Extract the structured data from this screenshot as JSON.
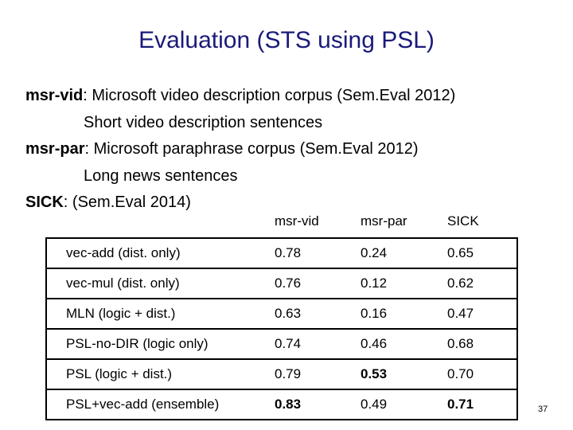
{
  "title": "Evaluation (STS using PSL)",
  "lines": [
    {
      "key": "msr-vid",
      "text": ": Microsoft video description corpus (Sem.Eval 2012)"
    },
    {
      "text": "Short video description sentences"
    },
    {
      "key": "msr-par",
      "text": ": Microsoft paraphrase corpus  (Sem.Eval 2012)"
    },
    {
      "text": "Long news sentences"
    },
    {
      "key": "SICK",
      "text": ": (Sem.Eval 2014)"
    }
  ],
  "table": {
    "headers": [
      "",
      "msr-vid",
      "msr-par",
      "SICK"
    ],
    "rows": [
      [
        "vec-add (dist. only)",
        "0.78",
        "0.24",
        "0.65"
      ],
      [
        "vec-mul (dist. only)",
        "0.76",
        "0.12",
        "0.62"
      ],
      [
        "MLN (logic + dist.)",
        "0.63",
        "0.16",
        "0.47"
      ],
      [
        "PSL-no-DIR (logic only)",
        "0.74",
        "0.46",
        "0.68"
      ],
      [
        "PSL (logic + dist.)",
        "0.79",
        "0.53",
        "0.70"
      ],
      [
        "PSL+vec-add (ensemble)",
        "0.83",
        "0.49",
        "0.71"
      ]
    ]
  },
  "page_number": "37"
}
